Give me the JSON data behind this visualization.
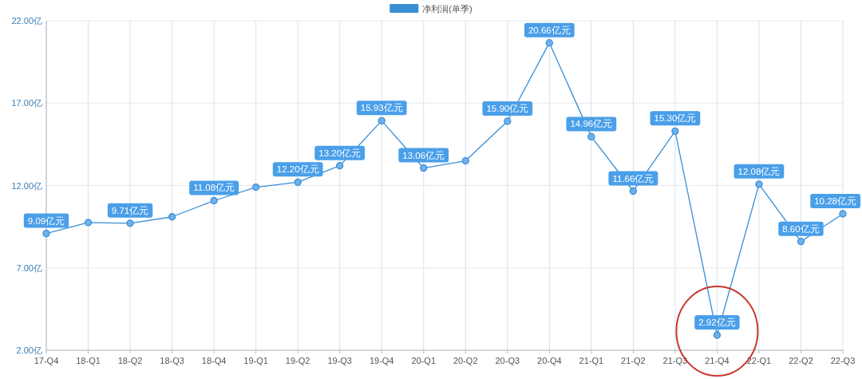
{
  "chart_data": {
    "type": "line",
    "categories": [
      "17-Q4",
      "18-Q1",
      "18-Q2",
      "18-Q3",
      "18-Q4",
      "19-Q1",
      "19-Q2",
      "19-Q3",
      "19-Q4",
      "20-Q1",
      "20-Q2",
      "20-Q3",
      "20-Q4",
      "21-Q1",
      "21-Q2",
      "21-Q3",
      "21-Q4",
      "22-Q1",
      "22-Q2",
      "22-Q3"
    ],
    "series": [
      {
        "name": "净利润(单季)",
        "color": "#3a8ed4",
        "values": [
          9.09,
          9.75,
          9.71,
          10.1,
          11.08,
          11.9,
          12.2,
          13.2,
          15.93,
          13.06,
          13.5,
          15.9,
          20.66,
          14.96,
          11.66,
          15.3,
          2.92,
          12.08,
          8.6,
          10.28
        ],
        "value_labels": [
          "9.09亿元",
          null,
          "9.71亿元",
          null,
          "11.08亿元",
          null,
          "12.20亿元",
          "13.20亿元",
          "15.93亿元",
          "13.06亿元",
          null,
          "15.90亿元",
          "20.66亿元",
          "14.96亿元",
          "11.66亿元",
          "15.30亿元",
          "2.92亿元",
          "12.08亿元",
          "8.60亿元",
          "10.28亿元"
        ]
      }
    ],
    "ylim": [
      2,
      22
    ],
    "yticks": [
      {
        "value": 2,
        "label": "2.00亿"
      },
      {
        "value": 7,
        "label": "7.00亿"
      },
      {
        "value": 12,
        "label": "12.00亿"
      },
      {
        "value": 17,
        "label": "17.00亿"
      },
      {
        "value": 22,
        "label": "22.00亿"
      }
    ],
    "grid": true,
    "legend": "top",
    "marker": "circle",
    "line_style": "solid"
  }
}
